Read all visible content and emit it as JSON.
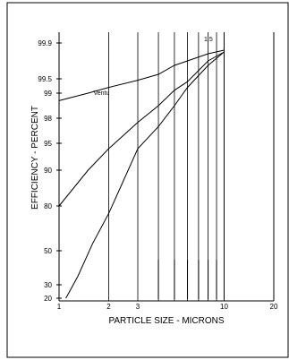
{
  "chart_data": {
    "type": "line",
    "title": "",
    "xlabel": "PARTICLE SIZE - MICRONS",
    "ylabel": "EFFICIENCY - PERCENT",
    "x_scale": "log",
    "x_ticks": [
      "1",
      "2",
      "3",
      "10",
      "20"
    ],
    "y_ticks": [
      "99.9",
      "99.5",
      "99",
      "98",
      "95",
      "90",
      "80",
      "50",
      "30",
      "20"
    ],
    "series": [
      {
        "name": "Ventu",
        "x": [
          1,
          1.5,
          2,
          3,
          4,
          5,
          6,
          8,
          10
        ],
        "y": [
          98.7,
          99.0,
          99.2,
          99.45,
          99.55,
          99.65,
          99.7,
          99.78,
          99.82
        ]
      },
      {
        "name": "",
        "x": [
          1,
          1.5,
          2,
          3,
          4,
          5,
          6,
          8,
          10
        ],
        "y": [
          80,
          90,
          94,
          97.5,
          98.5,
          99.1,
          99.4,
          99.7,
          99.8
        ]
      },
      {
        "name": "",
        "x": [
          1.1,
          1.3,
          1.6,
          2,
          3,
          4,
          5,
          6,
          8,
          10
        ],
        "y": [
          20,
          35,
          55,
          75,
          94,
          97,
          98.5,
          99.2,
          99.65,
          99.8
        ]
      }
    ],
    "annotations": [
      "Ventu",
      "1.5"
    ]
  }
}
